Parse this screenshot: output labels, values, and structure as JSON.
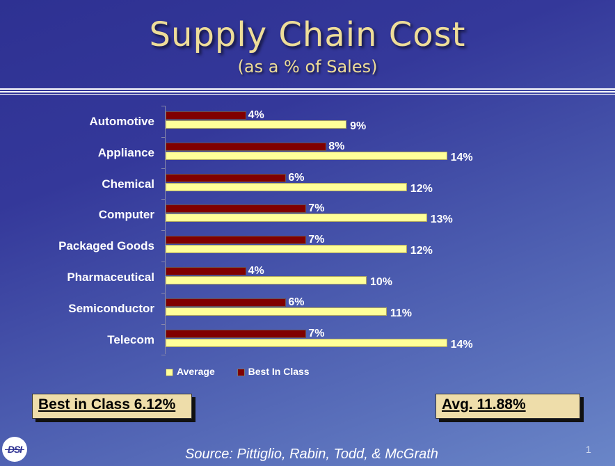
{
  "header": {
    "title": "Supply Chain Cost",
    "subtitle": "(as a % of Sales)"
  },
  "chart_data": {
    "type": "bar",
    "orientation": "horizontal",
    "title": "Supply Chain Cost",
    "subtitle": "(as a % of Sales)",
    "xlabel": "",
    "ylabel": "",
    "categories": [
      "Automotive",
      "Appliance",
      "Chemical",
      "Computer",
      "Packaged Goods",
      "Pharmaceutical",
      "Semiconductor",
      "Telecom"
    ],
    "series": [
      {
        "name": "Best In Class",
        "color": "#800000",
        "values": [
          4,
          8,
          6,
          7,
          7,
          4,
          6,
          7
        ],
        "labels": [
          "4%",
          "8%",
          "6%",
          "7%",
          "7%",
          "4%",
          "6%",
          "7%"
        ]
      },
      {
        "name": "Average",
        "color": "#ffff99",
        "values": [
          9,
          14,
          12,
          13,
          12,
          10,
          11,
          14
        ],
        "labels": [
          "9%",
          "14%",
          "12%",
          "13%",
          "12%",
          "10%",
          "11%",
          "14%"
        ]
      }
    ],
    "legend": {
      "position": "bottom",
      "entries": [
        "Average",
        "Best In Class"
      ]
    },
    "grid": false,
    "xlim": [
      0,
      16
    ]
  },
  "legend": {
    "average_label": "Average",
    "best_label": "Best In Class"
  },
  "summary": {
    "best_in_class": "Best in Class 6.12%",
    "average": "Avg. 11.88%"
  },
  "footer": {
    "source": "Source:  Pittiglio, Rabin, Todd,  & McGrath",
    "page_number": "1",
    "logo_text": "DSI"
  },
  "colors": {
    "best_in_class": "#800000",
    "average": "#ffff99",
    "title": "#eedd99",
    "summary_box": "#eeddaa"
  }
}
